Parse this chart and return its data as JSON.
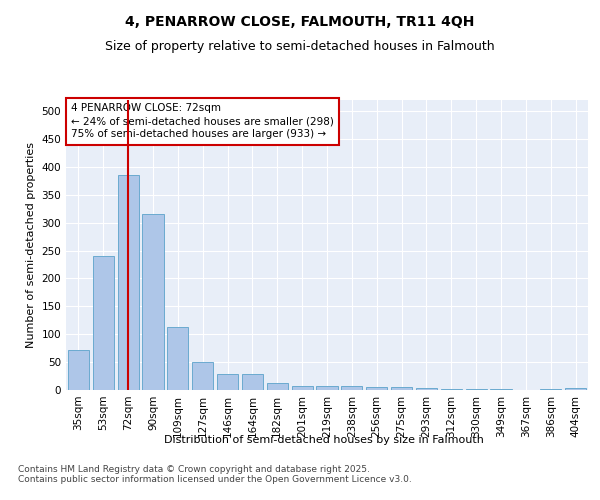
{
  "title": "4, PENARROW CLOSE, FALMOUTH, TR11 4QH",
  "subtitle": "Size of property relative to semi-detached houses in Falmouth",
  "xlabel": "Distribution of semi-detached houses by size in Falmouth",
  "ylabel": "Number of semi-detached properties",
  "categories": [
    "35sqm",
    "53sqm",
    "72sqm",
    "90sqm",
    "109sqm",
    "127sqm",
    "146sqm",
    "164sqm",
    "182sqm",
    "201sqm",
    "219sqm",
    "238sqm",
    "256sqm",
    "275sqm",
    "293sqm",
    "312sqm",
    "330sqm",
    "349sqm",
    "367sqm",
    "386sqm",
    "404sqm"
  ],
  "values": [
    72,
    240,
    385,
    315,
    113,
    50,
    28,
    28,
    12,
    7,
    7,
    8,
    5,
    5,
    3,
    1,
    1,
    1,
    0,
    1,
    3
  ],
  "bar_color": "#aec6e8",
  "bar_edge_color": "#6baad0",
  "property_line_index": 2,
  "property_label": "4 PENARROW CLOSE: 72sqm",
  "smaller_pct": "24%",
  "smaller_count": 298,
  "larger_pct": "75%",
  "larger_count": 933,
  "line_color": "#cc0000",
  "annotation_box_color": "#cc0000",
  "ylim": [
    0,
    520
  ],
  "yticks": [
    0,
    50,
    100,
    150,
    200,
    250,
    300,
    350,
    400,
    450,
    500
  ],
  "background_color": "#e8eef8",
  "footer_line1": "Contains HM Land Registry data © Crown copyright and database right 2025.",
  "footer_line2": "Contains public sector information licensed under the Open Government Licence v3.0.",
  "title_fontsize": 10,
  "subtitle_fontsize": 9,
  "axis_label_fontsize": 8,
  "tick_fontsize": 7.5,
  "annotation_fontsize": 7.5,
  "footer_fontsize": 6.5
}
